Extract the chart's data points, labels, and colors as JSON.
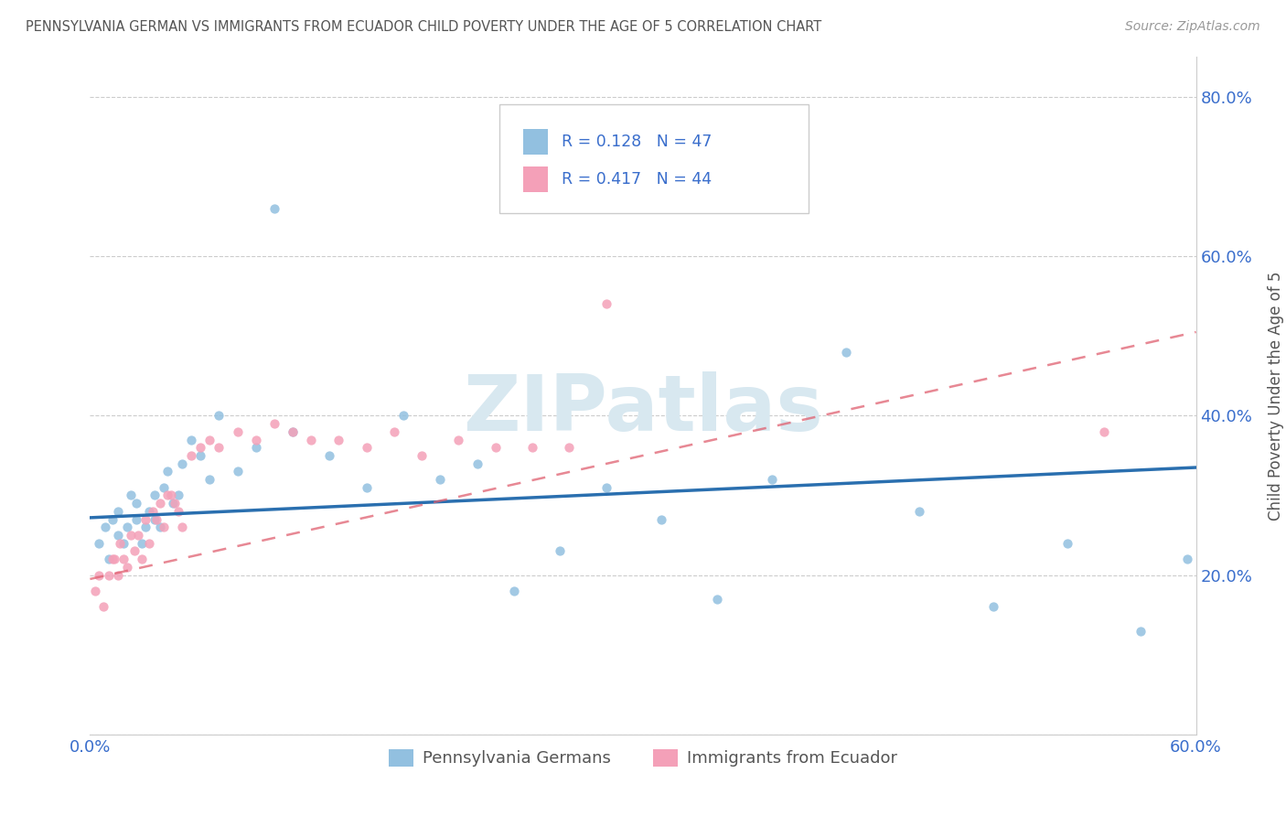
{
  "title": "PENNSYLVANIA GERMAN VS IMMIGRANTS FROM ECUADOR CHILD POVERTY UNDER THE AGE OF 5 CORRELATION CHART",
  "source": "Source: ZipAtlas.com",
  "ylabel": "Child Poverty Under the Age of 5",
  "x_min": 0.0,
  "x_max": 0.6,
  "y_min": 0.0,
  "y_max": 0.85,
  "y_ticks": [
    0.0,
    0.2,
    0.4,
    0.6,
    0.8
  ],
  "y_tick_labels": [
    "",
    "20.0%",
    "40.0%",
    "60.0%",
    "80.0%"
  ],
  "x_tick_labels": [
    "0.0%",
    "60.0%"
  ],
  "legend_r1": "R = 0.128",
  "legend_n1": "N = 47",
  "legend_r2": "R = 0.417",
  "legend_n2": "N = 44",
  "blue_color": "#92c0e0",
  "pink_color": "#f4a0b8",
  "line_blue": "#2a6faf",
  "line_pink": "#e06070",
  "title_color": "#555555",
  "axis_label_color": "#3a6ecc",
  "tick_label_color": "#3a6ecc",
  "blue_line_start_y": 0.272,
  "blue_line_end_y": 0.335,
  "pink_line_start_y": 0.195,
  "pink_line_end_y": 0.505,
  "blue_scatter_x": [
    0.005,
    0.008,
    0.01,
    0.012,
    0.015,
    0.015,
    0.018,
    0.02,
    0.022,
    0.025,
    0.025,
    0.028,
    0.03,
    0.032,
    0.035,
    0.035,
    0.038,
    0.04,
    0.042,
    0.045,
    0.048,
    0.05,
    0.055,
    0.06,
    0.065,
    0.07,
    0.08,
    0.09,
    0.1,
    0.11,
    0.13,
    0.15,
    0.17,
    0.19,
    0.21,
    0.23,
    0.255,
    0.28,
    0.31,
    0.34,
    0.37,
    0.41,
    0.45,
    0.49,
    0.53,
    0.57,
    0.595
  ],
  "blue_scatter_y": [
    0.24,
    0.26,
    0.22,
    0.27,
    0.25,
    0.28,
    0.24,
    0.26,
    0.3,
    0.27,
    0.29,
    0.24,
    0.26,
    0.28,
    0.27,
    0.3,
    0.26,
    0.31,
    0.33,
    0.29,
    0.3,
    0.34,
    0.37,
    0.35,
    0.32,
    0.4,
    0.33,
    0.36,
    0.66,
    0.38,
    0.35,
    0.31,
    0.4,
    0.32,
    0.34,
    0.18,
    0.23,
    0.31,
    0.27,
    0.17,
    0.32,
    0.48,
    0.28,
    0.16,
    0.24,
    0.13,
    0.22
  ],
  "pink_scatter_x": [
    0.003,
    0.005,
    0.007,
    0.01,
    0.012,
    0.013,
    0.015,
    0.016,
    0.018,
    0.02,
    0.022,
    0.024,
    0.026,
    0.028,
    0.03,
    0.032,
    0.034,
    0.036,
    0.038,
    0.04,
    0.042,
    0.044,
    0.046,
    0.048,
    0.05,
    0.055,
    0.06,
    0.065,
    0.07,
    0.08,
    0.09,
    0.1,
    0.11,
    0.12,
    0.135,
    0.15,
    0.165,
    0.18,
    0.2,
    0.22,
    0.24,
    0.26,
    0.28,
    0.55
  ],
  "pink_scatter_y": [
    0.18,
    0.2,
    0.16,
    0.2,
    0.22,
    0.22,
    0.2,
    0.24,
    0.22,
    0.21,
    0.25,
    0.23,
    0.25,
    0.22,
    0.27,
    0.24,
    0.28,
    0.27,
    0.29,
    0.26,
    0.3,
    0.3,
    0.29,
    0.28,
    0.26,
    0.35,
    0.36,
    0.37,
    0.36,
    0.38,
    0.37,
    0.39,
    0.38,
    0.37,
    0.37,
    0.36,
    0.38,
    0.35,
    0.37,
    0.36,
    0.36,
    0.36,
    0.54,
    0.38
  ]
}
